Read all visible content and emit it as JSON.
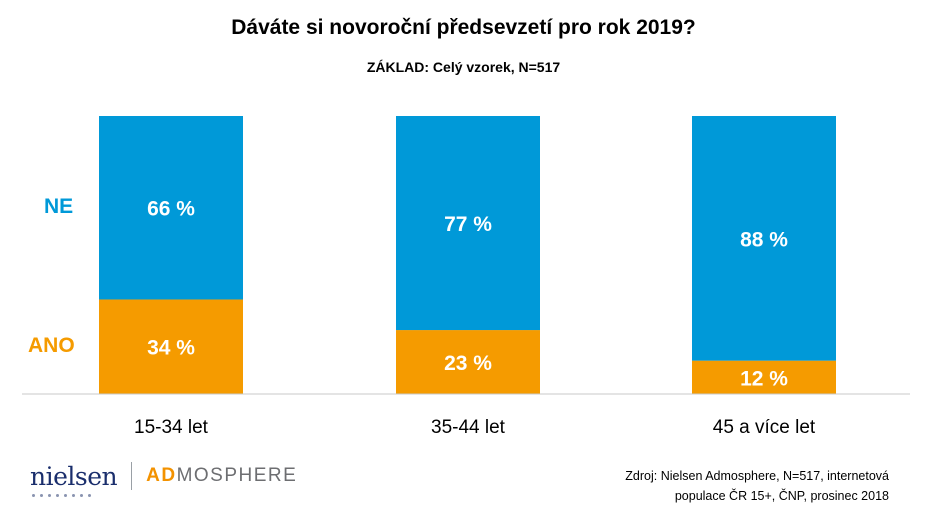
{
  "chart_data": {
    "type": "bar",
    "stacked": true,
    "title": "Dáváte si novoroční předsevzetí pro rok 2019?",
    "subtitle": "ZÁKLAD: Celý vzorek, N=517",
    "categories": [
      "15-34 let",
      "35-44 let",
      "45 a více let"
    ],
    "series": [
      {
        "name": "ANO",
        "values": [
          34,
          23,
          12
        ],
        "color": "#f59b00",
        "label_color": "#f59b00"
      },
      {
        "name": "NE",
        "values": [
          66,
          77,
          88
        ],
        "color": "#0099d8",
        "label_color": "#0099d8"
      }
    ],
    "value_suffix": " %",
    "ylim": [
      0,
      100
    ],
    "grid": false,
    "legend": "left"
  },
  "footer": {
    "logo_nielsen": "nielsen",
    "logo_ad": "AD",
    "logo_mosphere": "MOSPHERE",
    "source_line1": "Zdroj: Nielsen Admosphere, N=517, internetová",
    "source_line2": "populace ČR 15+, ČNP, prosinec 2018"
  }
}
